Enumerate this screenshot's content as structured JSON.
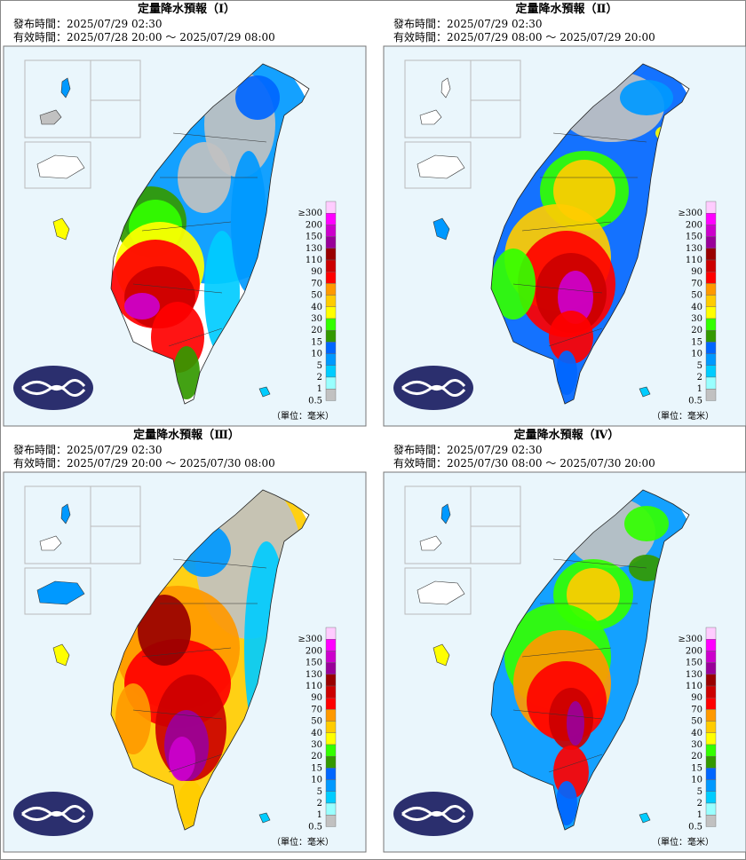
{
  "panels": [
    {
      "title": "定量降水預報（Ⅰ）",
      "issued": "發布時間：2025/07/29 02:30",
      "valid": "有效時間：2025/07/28 20:00 ～ 2025/07/29 08:00"
    },
    {
      "title": "定量降水預報（Ⅱ）",
      "issued": "發布時間：2025/07/29 02:30",
      "valid": "有效時間：2025/07/29 08:00 ～ 2025/07/29 20:00"
    },
    {
      "title": "定量降水預報（Ⅲ）",
      "issued": "發布時間：2025/07/29 02:30",
      "valid": "有效時間：2025/07/29 20:00 ～ 2025/07/30 08:00"
    },
    {
      "title": "定量降水預報（Ⅳ）",
      "issued": "發布時間：2025/07/29 02:30",
      "valid": "有效時間：2025/07/30 08:00 ～ 2025/07/30 20:00"
    }
  ],
  "legend": [
    {
      "label": "≥300",
      "color": "#ffccff"
    },
    {
      "label": "200",
      "color": "#ff00ff"
    },
    {
      "label": "150",
      "color": "#cc00cc"
    },
    {
      "label": "130",
      "color": "#990099"
    },
    {
      "label": "110",
      "color": "#990000"
    },
    {
      "label": "90",
      "color": "#cc0000"
    },
    {
      "label": "70",
      "color": "#ff0000"
    },
    {
      "label": "50",
      "color": "#ff9900"
    },
    {
      "label": "40",
      "color": "#ffcc00"
    },
    {
      "label": "30",
      "color": "#ffff00"
    },
    {
      "label": "20",
      "color": "#33ff00"
    },
    {
      "label": "15",
      "color": "#339900"
    },
    {
      "label": "10",
      "color": "#0066ff"
    },
    {
      "label": "5",
      "color": "#0099ff"
    },
    {
      "label": "2",
      "color": "#00ccff"
    },
    {
      "label": "1",
      "color": "#99ffff"
    },
    {
      "label": "0.5",
      "color": "#c1c1c1"
    }
  ],
  "unit_label": "（單位：毫米）"
}
